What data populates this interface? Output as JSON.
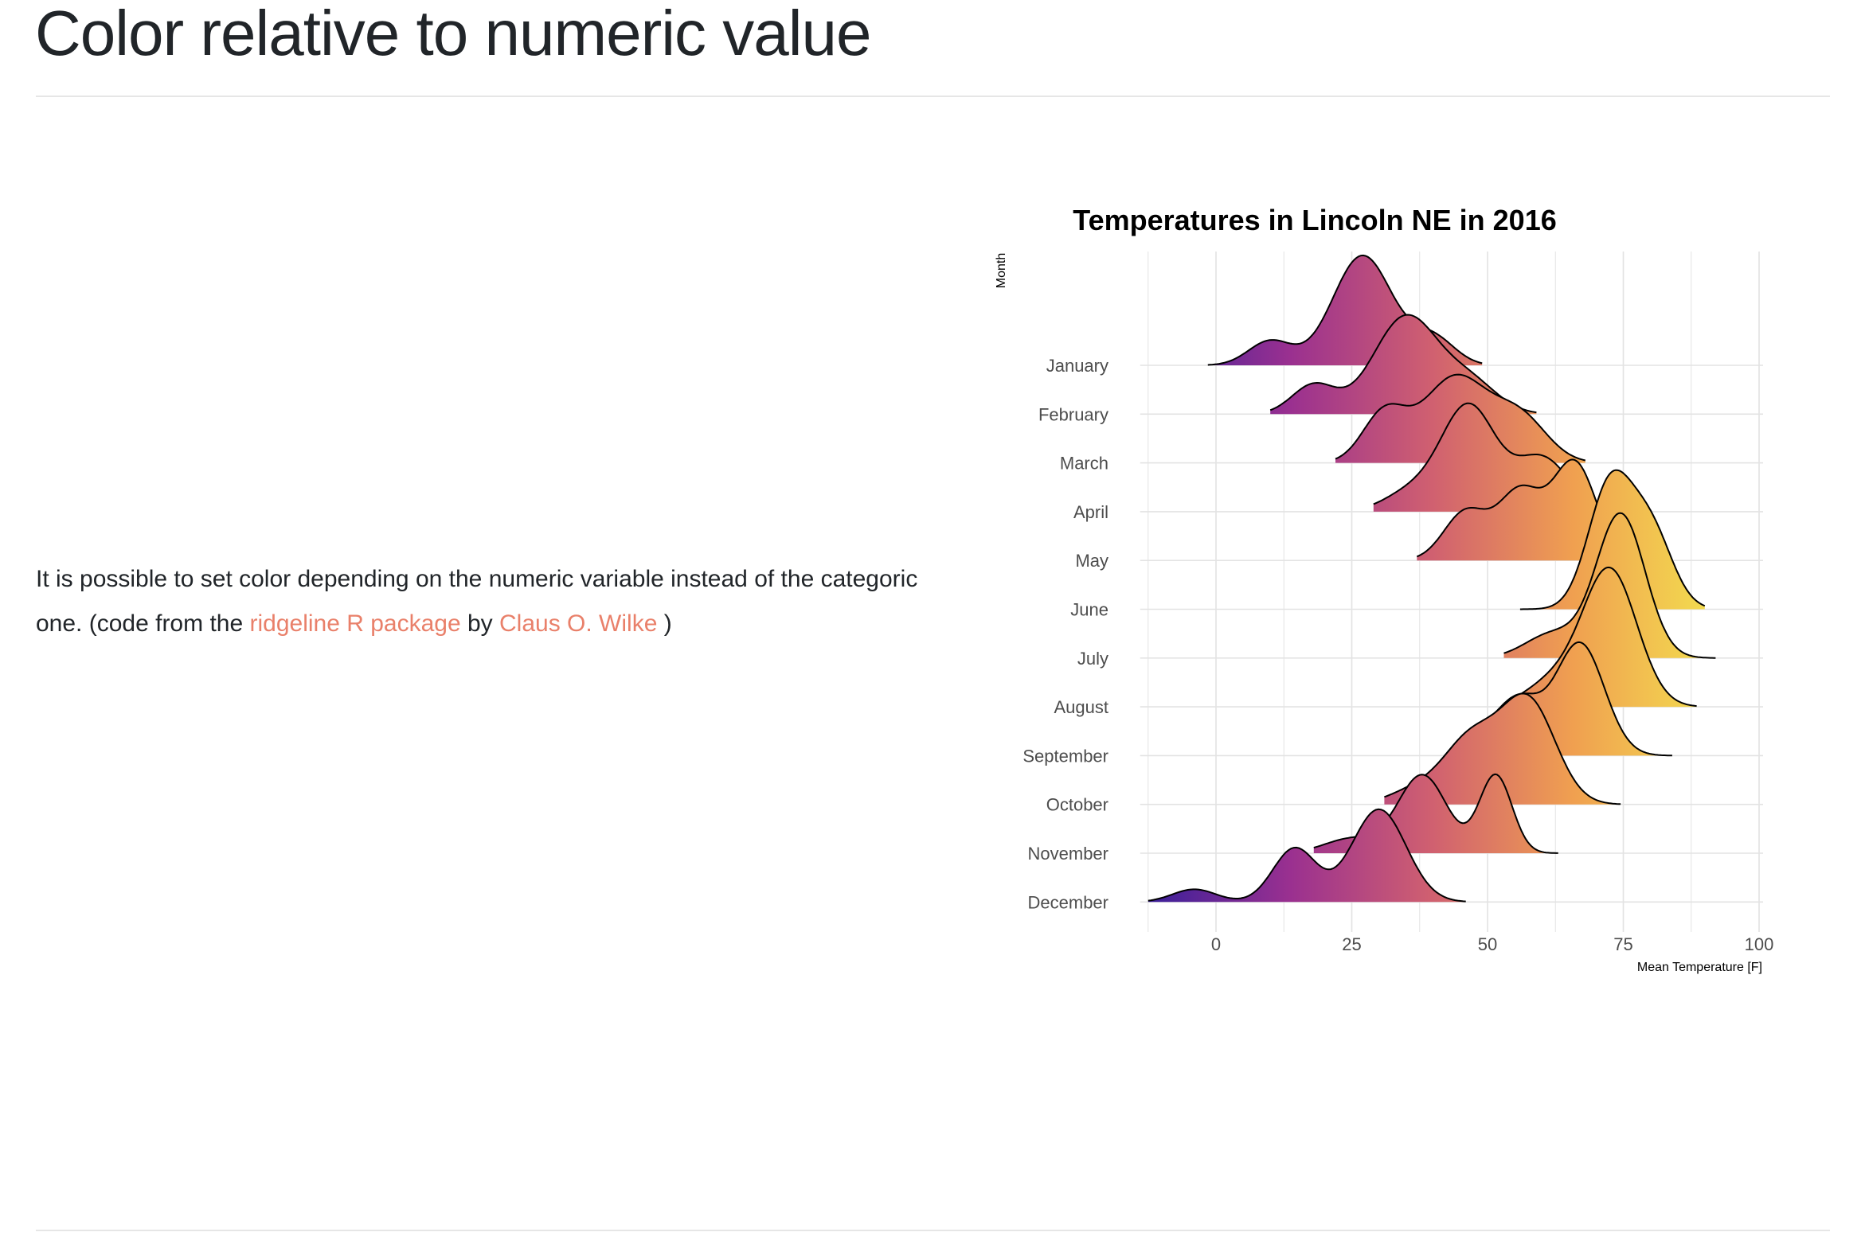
{
  "page": {
    "title": "Color relative to numeric value",
    "paragraph": {
      "text_before": "It is possible to set color depending on the numeric variable instead of the categoric one. (code from the ",
      "link1": "ridgeline R package",
      "text_middle": " by ",
      "link2": "Claus O. Wilke",
      "text_after": " )"
    },
    "link_color": "#e9806a"
  },
  "chart_data": {
    "type": "ridgeline",
    "title": "Temperatures in Lincoln NE in 2016",
    "xlabel": "Mean Temperature [F]",
    "ylabel": "Month",
    "xlim": [
      -12.5,
      100
    ],
    "xticks": [
      0,
      25,
      50,
      75,
      100
    ],
    "grid": true,
    "color_scale": "plasma",
    "color_stops": [
      "#3a1f9a",
      "#9a3090",
      "#d06070",
      "#f0a050",
      "#f3df4f"
    ],
    "height_units": "row spacings",
    "months": [
      {
        "name": "January",
        "range": [
          -1.5,
          49
        ],
        "components": [
          {
            "mu": 10,
            "sd": 4,
            "h": 0.5
          },
          {
            "mu": 27,
            "sd": 5.5,
            "h": 2.25
          },
          {
            "mu": 40,
            "sd": 4,
            "h": 0.55
          }
        ]
      },
      {
        "name": "February",
        "range": [
          10,
          59
        ],
        "components": [
          {
            "mu": 18,
            "sd": 4,
            "h": 0.6
          },
          {
            "mu": 35,
            "sd": 6,
            "h": 2.0
          },
          {
            "mu": 47,
            "sd": 5,
            "h": 0.6
          }
        ]
      },
      {
        "name": "March",
        "range": [
          22,
          68
        ],
        "components": [
          {
            "mu": 31,
            "sd": 4,
            "h": 1.0
          },
          {
            "mu": 44,
            "sd": 6,
            "h": 1.75
          },
          {
            "mu": 56,
            "sd": 5,
            "h": 0.9
          }
        ]
      },
      {
        "name": "April",
        "range": [
          29,
          72
        ],
        "components": [
          {
            "mu": 36,
            "sd": 5,
            "h": 0.4
          },
          {
            "mu": 46.5,
            "sd": 5,
            "h": 2.15
          },
          {
            "mu": 60,
            "sd": 5,
            "h": 1.1
          }
        ]
      },
      {
        "name": "May",
        "range": [
          37,
          78
        ],
        "components": [
          {
            "mu": 46,
            "sd": 4,
            "h": 1.0
          },
          {
            "mu": 56,
            "sd": 4,
            "h": 1.4
          },
          {
            "mu": 66,
            "sd": 4,
            "h": 2.0
          }
        ]
      },
      {
        "name": "June",
        "range": [
          56,
          90
        ],
        "components": [
          {
            "mu": 72.5,
            "sd": 4,
            "h": 2.5
          },
          {
            "mu": 80,
            "sd": 4,
            "h": 1.6
          }
        ]
      },
      {
        "name": "July",
        "range": [
          53,
          92
        ],
        "components": [
          {
            "mu": 62,
            "sd": 5,
            "h": 0.5
          },
          {
            "mu": 74.5,
            "sd": 4.5,
            "h": 2.95
          }
        ]
      },
      {
        "name": "August",
        "range": [
          55,
          88.5
        ],
        "components": [
          {
            "mu": 62,
            "sd": 5,
            "h": 0.5
          },
          {
            "mu": 72.5,
            "sd": 5,
            "h": 2.8
          }
        ]
      },
      {
        "name": "September",
        "range": [
          50,
          84
        ],
        "components": [
          {
            "mu": 49,
            "sd": 5,
            "h": 0.4
          },
          {
            "mu": 56,
            "sd": 4,
            "h": 1.0
          },
          {
            "mu": 67,
            "sd": 4.5,
            "h": 2.3
          }
        ]
      },
      {
        "name": "October",
        "range": [
          31,
          74.5
        ],
        "components": [
          {
            "mu": 37,
            "sd": 5,
            "h": 0.3
          },
          {
            "mu": 47,
            "sd": 5,
            "h": 1.3
          },
          {
            "mu": 57.5,
            "sd": 5,
            "h": 2.1
          }
        ]
      },
      {
        "name": "November",
        "range": [
          18,
          63
        ],
        "components": [
          {
            "mu": 25,
            "sd": 5,
            "h": 0.3
          },
          {
            "mu": 38,
            "sd": 4.5,
            "h": 1.6
          },
          {
            "mu": 51.5,
            "sd": 3,
            "h": 1.6
          }
        ]
      },
      {
        "name": "December",
        "range": [
          -12.5,
          46
        ],
        "components": [
          {
            "mu": -4,
            "sd": 4,
            "h": 0.26
          },
          {
            "mu": 14.5,
            "sd": 4,
            "h": 1.1
          },
          {
            "mu": 30,
            "sd": 5,
            "h": 1.9
          }
        ]
      }
    ]
  }
}
